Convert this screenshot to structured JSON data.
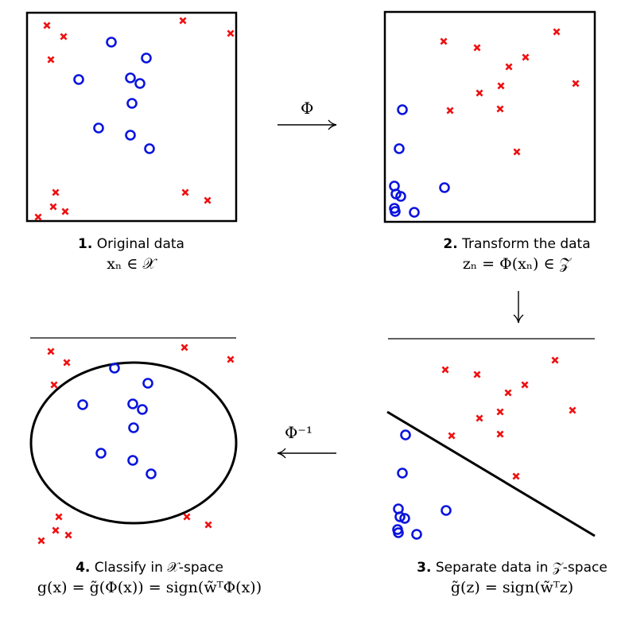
{
  "colors": {
    "cross": "#ee1111",
    "circle": "#0a14dd",
    "stroke": "#000000"
  },
  "panels": [
    {
      "id": "original",
      "number": "1.",
      "title": "Original data",
      "math": "xₙ ∈ 𝒳"
    },
    {
      "id": "transform",
      "number": "2.",
      "title": "Transform the data",
      "math": "zₙ = Φ(xₙ) ∈ 𝒵"
    },
    {
      "id": "separate",
      "number": "3.",
      "title": "Separate data in 𝒵-space",
      "math": "g̃(z) = sign(w̃ᵀz)"
    },
    {
      "id": "classify",
      "number": "4.",
      "title": "Classify in 𝒳-space",
      "math": "g(x) = g̃(Φ(x)) = sign(w̃ᵀΦ(x))"
    }
  ],
  "arrows": {
    "forward_label": "Φ",
    "inverse_label": "Φ⁻¹"
  }
}
